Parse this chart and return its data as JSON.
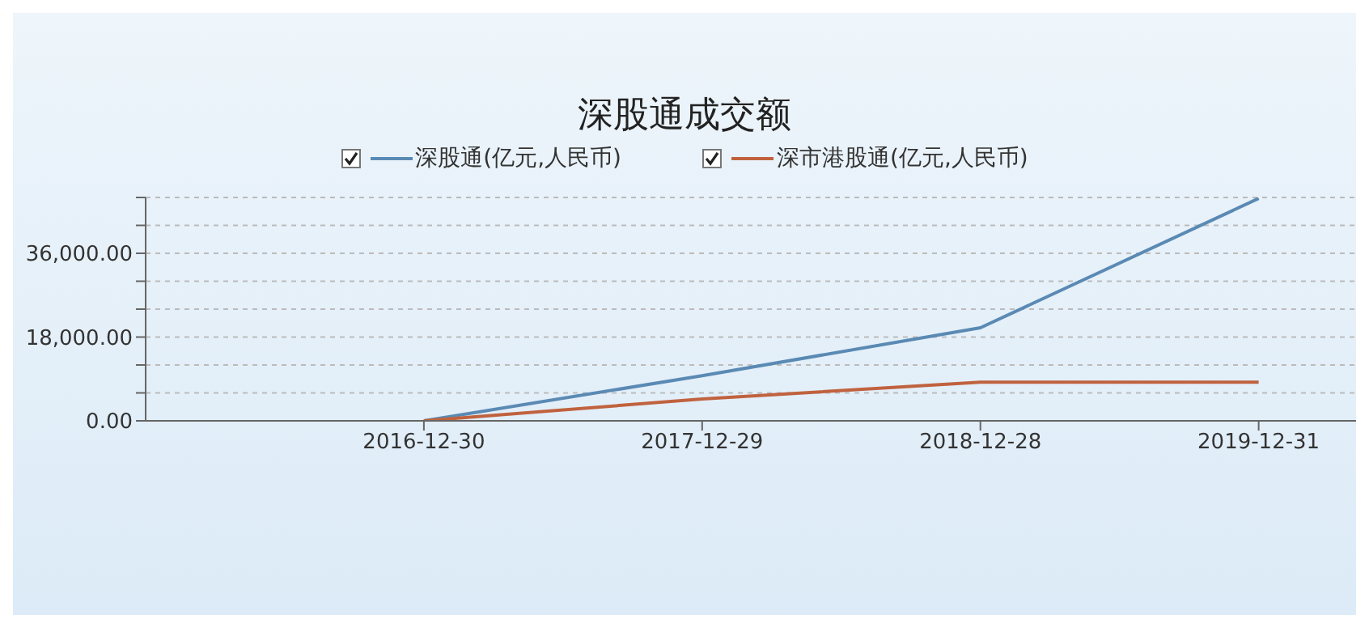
{
  "chart_data": {
    "type": "line",
    "title": "深股通成交额",
    "categories": [
      null,
      "2016-12-30",
      "2017-12-29",
      "2018-12-28",
      "2019-12-31"
    ],
    "series": [
      {
        "name": "深股通(亿元,人民币)",
        "color": "#5a8ab4",
        "values": [
          null,
          0,
          9700,
          20000,
          47800
        ]
      },
      {
        "name": "深市港股通(亿元,人民币)",
        "color": "#c0623e",
        "values": [
          null,
          0,
          4700,
          8300,
          8300
        ]
      }
    ],
    "ylim": [
      0,
      48000
    ],
    "yticks": [
      {
        "value": 0,
        "label": "0.00"
      },
      {
        "value": 6000,
        "label": null
      },
      {
        "value": 12000,
        "label": null
      },
      {
        "value": 18000,
        "label": "18,000.00"
      },
      {
        "value": 24000,
        "label": null
      },
      {
        "value": 30000,
        "label": null
      },
      {
        "value": 36000,
        "label": "36,000.00"
      },
      {
        "value": 42000,
        "label": null
      },
      {
        "value": 48000,
        "label": null
      }
    ],
    "grid": "y",
    "legend": "top",
    "marker": "none",
    "line_style": "solid"
  }
}
